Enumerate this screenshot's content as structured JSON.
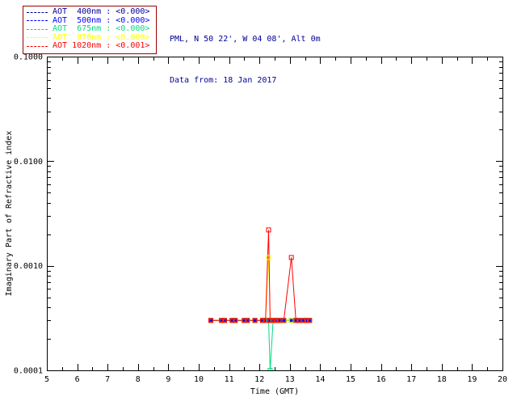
{
  "header": {
    "station_line": "PML, N 50 22', W 04 08', Alt 0m",
    "date_line": "Data from: 18 Jan 2017",
    "text_color": "#000099"
  },
  "legend": {
    "border_color": "#990000",
    "entries": [
      {
        "label": "AOT  400nm : <0.000>",
        "color": "#000099"
      },
      {
        "label": "AOT  500nm : <0.000>",
        "color": "#0000ff"
      },
      {
        "label": "AOT  675nm : <0.000>",
        "color": "#00dd7d"
      },
      {
        "label": "AOT  870nm : <0.000>",
        "color": "#ffff00"
      },
      {
        "label": "AOT 1020nm : <0.001>",
        "color": "#ff0000"
      }
    ]
  },
  "chart_data": {
    "type": "line",
    "title": "",
    "xlabel": "Time (GMT)",
    "ylabel": "Imaginary Part of Refractive index",
    "xlim": [
      5,
      20
    ],
    "ylim": [
      0.0001,
      0.1
    ],
    "yscale": "log",
    "grid": false,
    "legend_position": "top-left-outside",
    "xticks": [
      5,
      6,
      7,
      8,
      9,
      10,
      11,
      12,
      13,
      14,
      15,
      16,
      17,
      18,
      19,
      20
    ],
    "yticks": [
      {
        "value": 0.0001,
        "label": "0.0001"
      },
      {
        "value": 0.001,
        "label": "0.0010"
      },
      {
        "value": 0.01,
        "label": "0.0100"
      },
      {
        "value": 0.1,
        "label": "0.1000"
      }
    ],
    "x": [
      10.4,
      10.75,
      10.85,
      11.1,
      11.2,
      11.5,
      11.6,
      11.85,
      12.1,
      12.2,
      12.3,
      12.35,
      12.45,
      12.55,
      12.65,
      12.8,
      13.05,
      13.2,
      13.3,
      13.45,
      13.55,
      13.65
    ],
    "series": [
      {
        "name": "AOT 400nm",
        "color": "#000099",
        "marker": "square",
        "values": [
          0.0003,
          0.0003,
          0.0003,
          0.0003,
          0.0003,
          0.0003,
          0.0003,
          0.0003,
          0.0003,
          0.0003,
          0.0003,
          0.0003,
          0.0003,
          0.0003,
          0.0003,
          0.0003,
          0.0003,
          0.0003,
          0.0003,
          0.0003,
          0.0003,
          0.0003
        ]
      },
      {
        "name": "AOT 500nm",
        "color": "#0000ff",
        "marker": "asterisk",
        "values": [
          0.0003,
          0.0003,
          0.0003,
          0.0003,
          0.0003,
          0.0003,
          0.0003,
          0.0003,
          0.0003,
          0.0003,
          0.0003,
          0.0003,
          0.0003,
          0.0003,
          0.0003,
          0.0003,
          0.0003,
          0.0003,
          0.0003,
          0.0003,
          0.0003,
          0.0003
        ]
      },
      {
        "name": "AOT 675nm",
        "color": "#00dd7d",
        "marker": "square",
        "values": [
          0.0003,
          0.0003,
          0.0003,
          0.0003,
          0.0003,
          0.0003,
          0.0003,
          0.0003,
          0.0003,
          0.0003,
          0.0003,
          0.0001,
          0.0003,
          0.0003,
          0.0003,
          0.0003,
          0.0003,
          0.0003,
          0.0003,
          0.0003,
          0.0003,
          0.0003
        ]
      },
      {
        "name": "AOT 870nm",
        "color": "#ffff00",
        "marker": "square",
        "values": [
          0.0003,
          0.0003,
          0.0003,
          0.0003,
          0.0003,
          0.0003,
          0.0003,
          0.0003,
          0.0003,
          0.0003,
          0.0012,
          0.0003,
          0.0003,
          0.0003,
          0.0003,
          0.0003,
          0.0003,
          0.0003,
          0.0003,
          0.0003,
          0.0003,
          0.0003
        ]
      },
      {
        "name": "AOT 1020nm",
        "color": "#ff0000",
        "marker": "square",
        "values": [
          0.0003,
          0.0003,
          0.0003,
          0.0003,
          0.0003,
          0.0003,
          0.0003,
          0.0003,
          0.0003,
          0.0003,
          0.0022,
          0.0003,
          0.0003,
          0.0003,
          0.0003,
          0.0003,
          0.0012,
          0.0003,
          0.0003,
          0.0003,
          0.0003,
          0.0003
        ]
      }
    ]
  }
}
